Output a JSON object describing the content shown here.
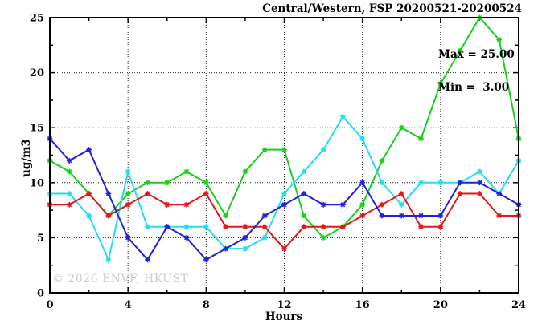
{
  "header": {
    "title": "Central/Western, FSP 20200521-20200524"
  },
  "stats": {
    "max_label": "Max = 25.00",
    "min_label": "Min =  3.00"
  },
  "watermark": "© 2026 ENVF, HKUST",
  "chart_data": {
    "type": "line",
    "title": "Central/Western, FSP 20200521-20200524",
    "xlabel": "Hours",
    "ylabel": "ug/m3",
    "xlim": [
      0,
      24
    ],
    "ylim": [
      0,
      25
    ],
    "xticks": [
      0,
      4,
      8,
      12,
      16,
      20,
      24
    ],
    "yticks": [
      0,
      5,
      10,
      15,
      20,
      25
    ],
    "x_minor_step": 2,
    "y_minor_step": 2.5,
    "grid": true,
    "legend_position": "none",
    "annotations": {
      "max": 25.0,
      "min": 3.0
    },
    "marker": "asterisk",
    "x": [
      0,
      1,
      2,
      3,
      4,
      5,
      6,
      7,
      8,
      9,
      10,
      11,
      12,
      13,
      14,
      15,
      16,
      17,
      18,
      19,
      20,
      21,
      22,
      23,
      24
    ],
    "series": [
      {
        "name": "green",
        "color": "#16d216",
        "values": [
          12,
          11,
          9,
          7,
          9,
          10,
          10,
          11,
          10,
          7,
          11,
          13,
          13,
          7,
          5,
          6,
          8,
          12,
          15,
          14,
          19,
          22,
          25,
          23,
          14
        ]
      },
      {
        "name": "cyan",
        "color": "#22dff0",
        "values": [
          9,
          9,
          7,
          3,
          11,
          6,
          6,
          6,
          6,
          4,
          4,
          5,
          9,
          11,
          13,
          16,
          14,
          10,
          8,
          10,
          10,
          10,
          11,
          9,
          12
        ]
      },
      {
        "name": "red",
        "color": "#e41616",
        "values": [
          8,
          8,
          9,
          7,
          8,
          9,
          8,
          8,
          9,
          6,
          6,
          6,
          4,
          6,
          6,
          6,
          7,
          8,
          9,
          6,
          6,
          9,
          9,
          7,
          7
        ]
      },
      {
        "name": "blue",
        "color": "#2020dd",
        "values": [
          14,
          12,
          13,
          9,
          5,
          3,
          6,
          5,
          3,
          4,
          5,
          7,
          8,
          9,
          8,
          8,
          10,
          7,
          7,
          7,
          7,
          10,
          10,
          9,
          8
        ]
      }
    ]
  }
}
